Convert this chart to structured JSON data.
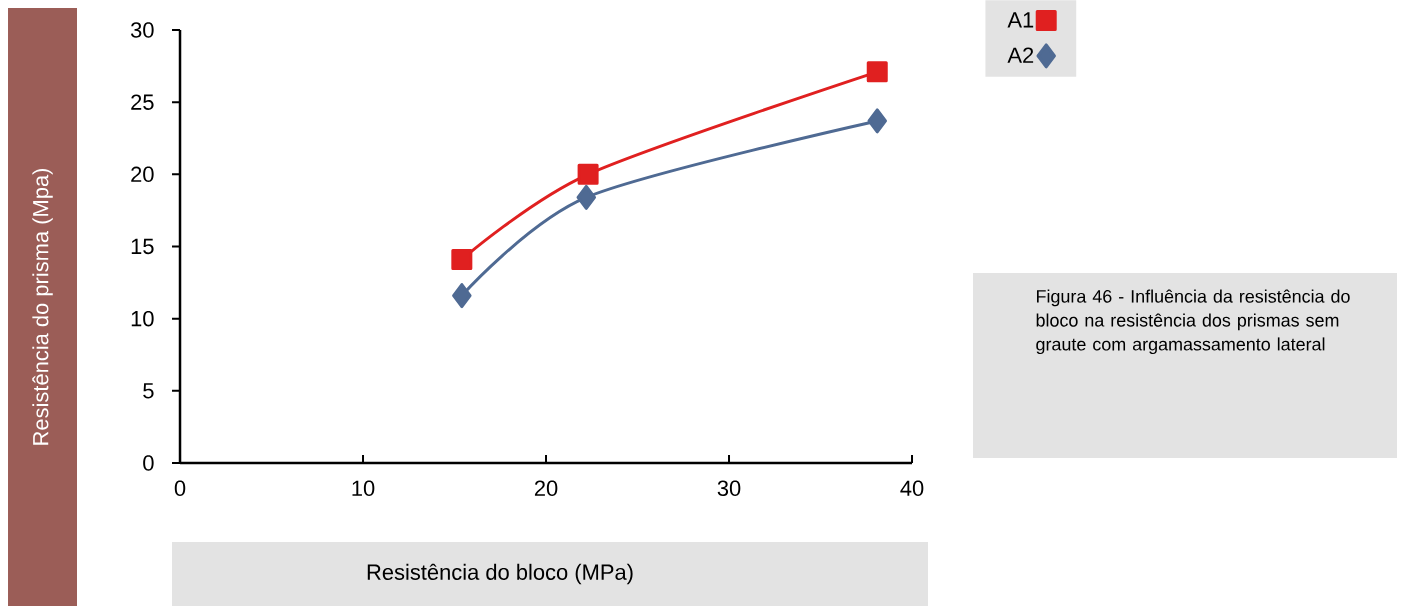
{
  "chart_data": {
    "type": "line",
    "xlabel": "Resistência do bloco (MPa)",
    "ylabel": "Resistência do prisma (Mpa)",
    "xlim": [
      0,
      40
    ],
    "xticks": [
      0,
      10,
      20,
      30,
      40
    ],
    "ylim": [
      0,
      30
    ],
    "yticks": [
      0,
      5,
      10,
      15,
      20,
      25,
      30
    ],
    "legend": "top right",
    "line_style": "solid",
    "series": [
      {
        "name": "A1",
        "color": "#e02020",
        "marker": "square",
        "x": [
          15.4,
          22.3,
          38.1
        ],
        "values": [
          14.1,
          20.0,
          27.1
        ]
      },
      {
        "name": "A2",
        "color": "#4f6a93",
        "marker": "diamond",
        "x": [
          15.4,
          22.2,
          38.1
        ],
        "values": [
          11.6,
          18.4,
          23.7
        ]
      }
    ],
    "annotations": [
      "Figura 46 - Influência da resistência do bloco na resistência dos prismas sem graute com argamassamento lateral"
    ]
  }
}
